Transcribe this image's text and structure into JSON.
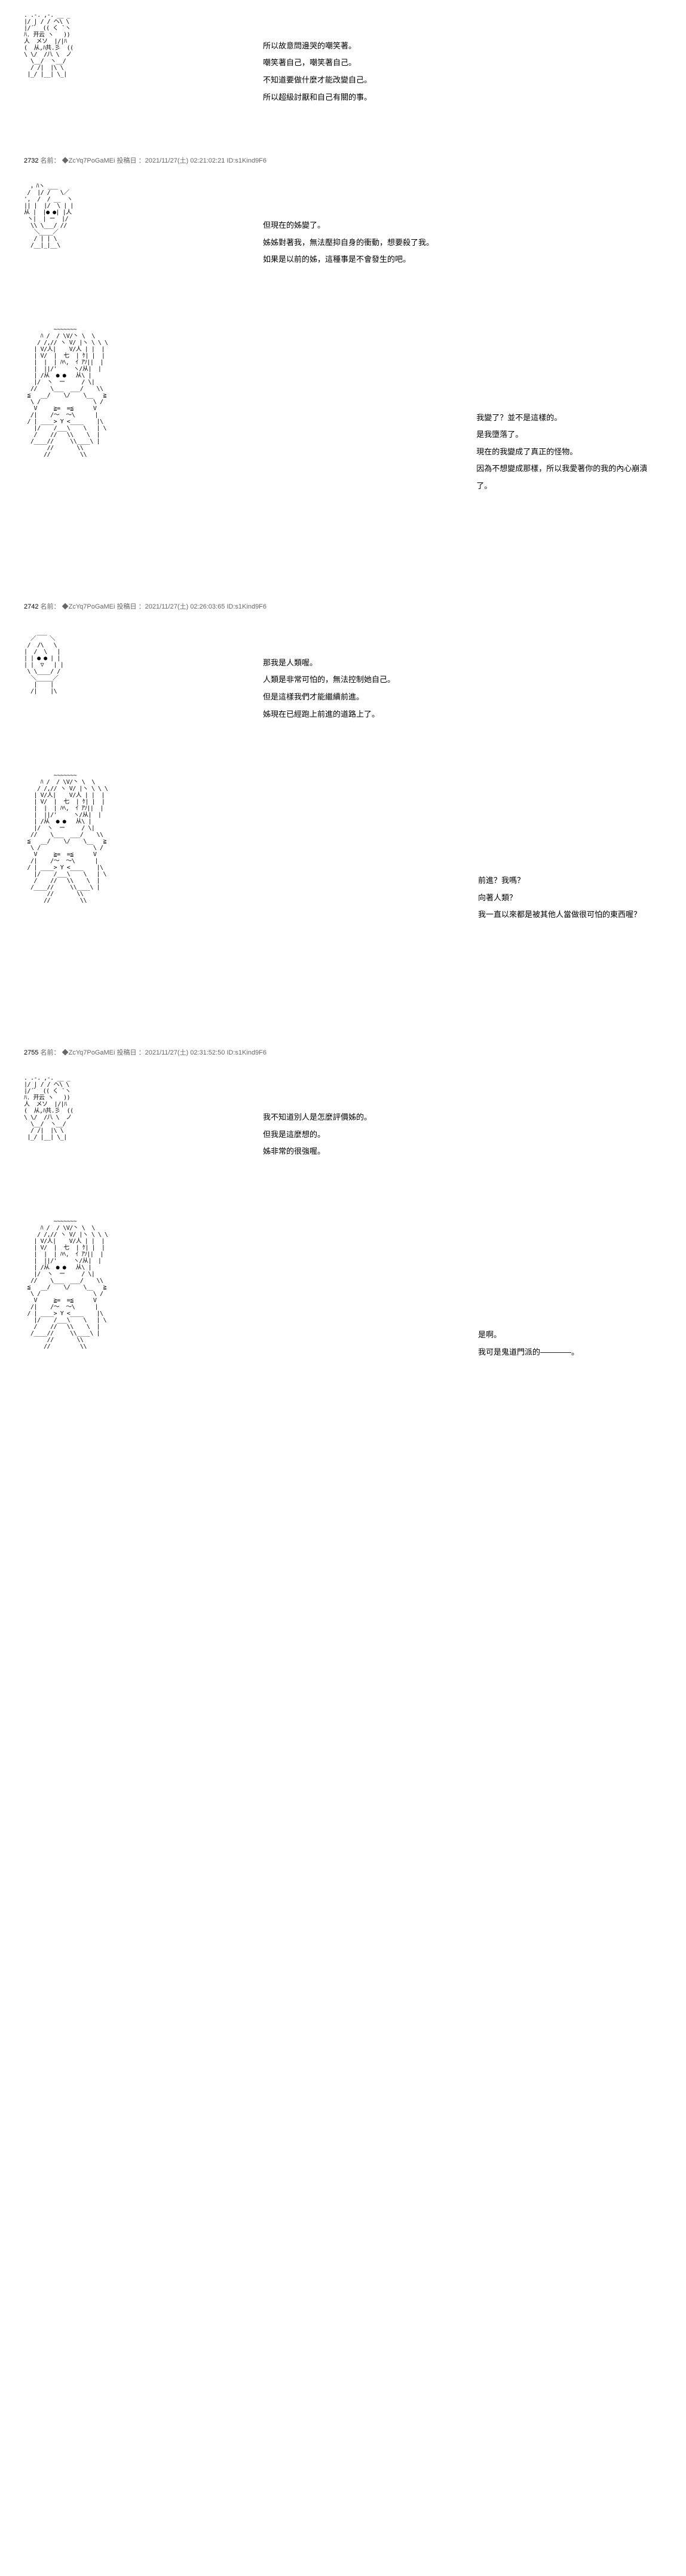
{
  "panels": [
    {
      "art_type": "small",
      "lines": [
        "所以故意問邊哭的嘲笑著。",
        "嘲笑著自己，嘲笑著自己。",
        "不知道要做什麼才能改變自己。",
        "所以超級討厭和自己有關的事。"
      ]
    }
  ],
  "meta1": {
    "num": "2732",
    "label": "名前：",
    "trip": "◆ZcYq7PoGaMEi",
    "date_label": "投稿日",
    "date": "：2021/11/27(土) 02:21:02:21 ID:s1Kind9F6"
  },
  "panel2": {
    "lines": [
      "但現在的姊變了。",
      "姊姊對著我，無法壓抑自身的衝動，想要殺了我。",
      "如果是以前的姊，這種事是不會發生的吧。"
    ]
  },
  "panel3": {
    "lines": [
      "我變了？並不是這樣的。",
      "是我墮落了。",
      "現在的我變成了真正的怪物。",
      "因為不想變成那樣，所以我愛著你的我的內心崩潰了。"
    ]
  },
  "meta2": {
    "num": "2742",
    "label": "名前：",
    "trip": "◆ZcYq7PoGaMEi",
    "date_label": "投稿日",
    "date": "：2021/11/27(土) 02:26:03:65 ID:s1Kind9F6"
  },
  "panel4": {
    "lines": [
      "那我是人類喔。",
      "人類是非常可怕的，無法控制她自己。",
      "但是這樣我們才能繼續前進。",
      "姊現在已經跑上前進的道路上了。"
    ]
  },
  "panel5": {
    "lines": [
      "前進？我嗎？",
      "向著人類？",
      "我一直以來都是被其他人當做很可怕的東西喔？"
    ]
  },
  "meta3": {
    "num": "2755",
    "label": "名前：",
    "trip": "◆ZcYq7PoGaMEi",
    "date_label": "投稿日",
    "date": "：2021/11/27(土) 02:31:52:50 ID:s1Kind9F6"
  },
  "panel6": {
    "lines": [
      "我不知道別人是怎麼評價姊的。",
      "但我是這麼想的。",
      "姊非常的很強喔。"
    ]
  },
  "panel7": {
    "lines": [
      "是啊。",
      "我可是鬼道門派的————。"
    ]
  },
  "ascii_small_1": ". .-. ,-. __ _\n|/ | / / へ\\ \\\n|/´゛ (( く `ヽ\nﾊ. 开云 ヽ   ))\n人  メソ  |/|ﾊ\n(  从,ﾊ共.彡  ((\n\\ \\/  /八 \\  ノ\n  \\__/  ヽ__/\n  / /|  |\\ \\\n |_/ |__| \\_|",
  "ascii_small_2": "  ，ﾊヽ ___\n /  |/ /   \\／\n',  /  / __  ヽ\n|| |  |/  \\ | |\n从 |  |● ●| |人\n ヽ|  | ー  |/\n  \\\\ \\___/ //\n   ＼____／\n   / | | \\\n  /__|_|__\\",
  "ascii_small_3": "    ___\n  ／    ＼\n /  /\\   \\\n|  /  \\   |\n| | ● ● | |\n| |  ▽   | |\n \\ \\____/ /\n  ＼_____／\n   |    |\n  /|    |\\",
  "ascii_small_4": ". .-. ,-. __ _\n|/ | / / へ\\ \\\n|/´゛ (( く `ヽ\nﾊ. 开云 ヽ   ))\n人  メソ  |/|ﾊ\n(  从,ﾊ共.彡  ((\n\\ \\/  /八 \\  ノ\n  \\__/  ヽ__/\n  / /|  |\\ \\\n |_/ |__| \\_|",
  "ascii_large_1": "         ~~~~~~~\n     ﾊ /  / \\V/丶 \\  \\\n    / /,// ヽ V/ |ヽ \\ \\ \\\n   | V/人|    V/人 | |  |\n   | V/  |  七  | ｹ| |  |\n   |  |  | ﾊﾍ,  ｲ ｱｿ||  |\n   |  ||/'     ヽ/从|  |\n   | /从  ● ●   从\\ |\n   |/  ヽ  ー     / \\|\n  //    \\___  ___/    \\\\\n ≦   __/    \\/    \\__   ≧\n  \\ /                \\ /\n   V     ≧=  =≦      V\n  /|    /～  ～\\      |\n / | ____> Y <____    |\\\n   |/    /___\\    \\   | \\\n   /    //   \\\\    \\  |\n  /____//     \\\\____\\ |\n       //       \\\\\n      //         \\\\",
  "ascii_large_2": "         ~~~~~~~\n     ﾊ /  / \\V/丶 \\  \\\n    / /,// ヽ V/ |ヽ \\ \\ \\\n   | V/人|    V/人 | |  |\n   | V/  |  七  | ｹ| |  |\n   |  |  | ﾊﾍ,  ｲ ｱｿ||  |\n   |  ||/'     ヽ/从|  |\n   | /从  ● ●   从\\ |\n   |/  ヽ  ー     / \\|\n  //    \\___  ___/    \\\\\n ≦   __/    \\/    \\__   ≧\n  \\ /                \\ /\n   V     ≧=  =≦      V\n  /|    /～  ～\\      |\n / | ____> Y <____    |\\\n   |/    /___\\    \\   | \\\n   /    //   \\\\    \\  |\n  /____//     \\\\____\\ |\n       //       \\\\\n      //         \\\\",
  "ascii_large_3": "         ~~~~~~~\n     ﾊ /  / \\V/丶 \\  \\\n    / /,// ヽ V/ |ヽ \\ \\ \\\n   | V/人|    V/人 | |  |\n   | V/  |  七  | ｹ| |  |\n   |  |  | ﾊﾍ,  ｲ ｱｿ||  |\n   |  ||/'     ヽ/从|  |\n   | /从  ● ●   从\\ |\n   |/  ヽ  ー     / \\|\n  //    \\___  ___/    \\\\\n ≦   __/    \\/    \\__   ≧\n  \\ /                \\ /\n   V     ≧=  =≦      V\n  /|    /～  ～\\      |\n / | ____> Y <____    |\\\n   |/    /___\\    \\   | \\\n   /    //   \\\\    \\  |\n  /____//     \\\\____\\ |\n       //       \\\\\n      //         \\\\"
}
